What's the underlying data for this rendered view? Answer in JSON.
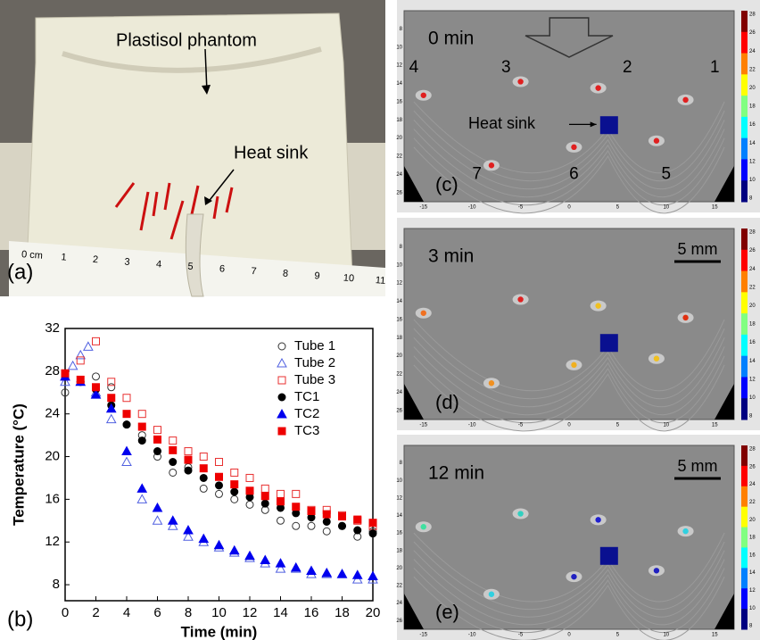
{
  "photo": {
    "label": "(a)",
    "title": "Plastisol phantom",
    "heat_sink": "Heat sink",
    "ruler": [
      "0 cm",
      "1",
      "2",
      "3",
      "4",
      "5",
      "6",
      "7",
      "8",
      "9",
      "10",
      "11"
    ]
  },
  "chart_data": {
    "type": "scatter",
    "label": "(b)",
    "x_label": "Time (min)",
    "y_label": "Temperature (°C)",
    "xlim": [
      0,
      20
    ],
    "ylim": [
      6.5,
      32
    ],
    "xticks": [
      0,
      2,
      4,
      6,
      8,
      10,
      12,
      14,
      16,
      18,
      20
    ],
    "yticks": [
      8,
      12,
      16,
      20,
      24,
      28,
      32
    ],
    "series": [
      {
        "name": "Tube 1",
        "color": "#333333",
        "marker": "circle",
        "filled": false,
        "x": [
          0,
          1,
          2,
          3,
          4,
          5,
          6,
          7,
          8,
          9,
          10,
          11,
          12,
          13,
          14,
          15,
          16,
          17,
          18,
          19,
          20
        ],
        "values": [
          26,
          27,
          27.5,
          26.5,
          23,
          22,
          20,
          18.5,
          19,
          17,
          16.5,
          16,
          15.5,
          15,
          14,
          13.5,
          13.5,
          13,
          13.5,
          12.5,
          13
        ]
      },
      {
        "name": "Tube 2",
        "color": "#5060e0",
        "marker": "triangle",
        "filled": false,
        "x": [
          0,
          0.5,
          1,
          1.5,
          2,
          3,
          4,
          5,
          6,
          7,
          8,
          9,
          10,
          11,
          12,
          13,
          14,
          15,
          16,
          17,
          18,
          19,
          20
        ],
        "values": [
          27,
          28.5,
          29.5,
          30.3,
          26,
          23.5,
          19.5,
          16,
          14,
          13.5,
          12.5,
          12,
          11.5,
          11,
          10.5,
          10,
          9.5,
          9.5,
          9,
          9,
          9,
          8.5,
          8.5
        ]
      },
      {
        "name": "Tube 3",
        "color": "#e83030",
        "marker": "square",
        "filled": false,
        "x": [
          0,
          1,
          2,
          3,
          4,
          5,
          6,
          7,
          8,
          9,
          10,
          11,
          12,
          13,
          14,
          15,
          16,
          17,
          18,
          19,
          20
        ],
        "values": [
          27.5,
          29,
          30.8,
          27,
          25.5,
          24,
          22.5,
          21.5,
          20.5,
          20,
          19.5,
          18.5,
          18,
          17,
          16.5,
          16.5,
          15,
          15,
          14.5,
          14,
          13.5
        ]
      },
      {
        "name": "TC1",
        "color": "#000000",
        "marker": "circle",
        "filled": true,
        "x": [
          0,
          1,
          2,
          3,
          4,
          5,
          6,
          7,
          8,
          9,
          10,
          11,
          12,
          13,
          14,
          15,
          16,
          17,
          18,
          19,
          20
        ],
        "values": [
          27.5,
          27,
          26.3,
          24.8,
          23,
          21.5,
          20.5,
          19.5,
          18.7,
          18,
          17.3,
          16.7,
          16.2,
          15.6,
          15.2,
          14.7,
          14.3,
          13.9,
          13.5,
          13.1,
          12.8
        ]
      },
      {
        "name": "TC2",
        "color": "#0000ee",
        "marker": "triangle",
        "filled": true,
        "x": [
          0,
          1,
          2,
          3,
          4,
          5,
          6,
          7,
          8,
          9,
          10,
          11,
          12,
          13,
          14,
          15,
          16,
          17,
          18,
          19,
          20
        ],
        "values": [
          27.5,
          27,
          25.8,
          24.5,
          20.5,
          17,
          15.2,
          14,
          13.1,
          12.3,
          11.7,
          11.2,
          10.7,
          10.3,
          10,
          9.6,
          9.3,
          9.1,
          9,
          8.9,
          8.8
        ]
      },
      {
        "name": "TC3",
        "color": "#ee0000",
        "marker": "square",
        "filled": true,
        "x": [
          0,
          1,
          2,
          3,
          4,
          5,
          6,
          7,
          8,
          9,
          10,
          11,
          12,
          13,
          14,
          15,
          16,
          17,
          18,
          19,
          20
        ],
        "values": [
          27.8,
          27.2,
          26.5,
          25.5,
          24,
          22.8,
          21.6,
          20.6,
          19.7,
          18.9,
          18.1,
          17.4,
          16.8,
          16.3,
          15.8,
          15.3,
          14.9,
          14.6,
          14.4,
          14.1,
          13.8
        ]
      }
    ]
  },
  "images": {
    "xticks": [
      "-15",
      "-10",
      "-5",
      "0",
      "5",
      "10",
      "15"
    ],
    "yticks": [
      "8",
      "10",
      "12",
      "14",
      "16",
      "18",
      "20",
      "22",
      "24",
      "26"
    ],
    "colorbar": [
      "28",
      "26",
      "24",
      "22",
      "20",
      "18",
      "16",
      "14",
      "12",
      "10",
      "8"
    ],
    "tube_labels": [
      "1",
      "2",
      "3",
      "4",
      "5",
      "6",
      "7"
    ],
    "heat_sink": "Heat sink",
    "scale": "5 mm",
    "panels": [
      {
        "label": "(c)",
        "time": "0 min",
        "dot_colors": [
          "#e02020",
          "#e02020",
          "#e02020",
          "#e02020",
          "#e02020",
          "#e02020",
          "#e02020"
        ]
      },
      {
        "label": "(d)",
        "time": "3 min",
        "dot_colors": [
          "#e03010",
          "#f0c020",
          "#e02020",
          "#f07020",
          "#f0c020",
          "#f0b020",
          "#f09020"
        ]
      },
      {
        "label": "(e)",
        "time": "12 min",
        "dot_colors": [
          "#30d0e0",
          "#2020d0",
          "#30d0c0",
          "#40e0a0",
          "#2020c0",
          "#2020c0",
          "#30d0e0"
        ]
      }
    ]
  }
}
